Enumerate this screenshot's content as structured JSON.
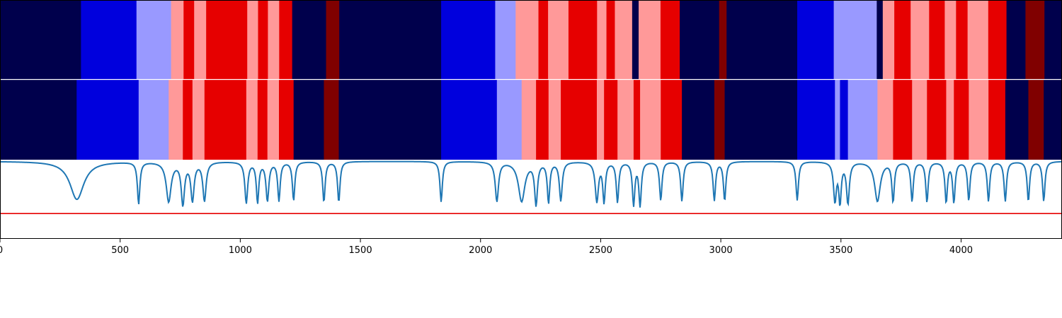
{
  "chart_data": {
    "type": "heatmap",
    "title": "",
    "xlabel": "",
    "ylabel": "",
    "xlim": [
      0,
      4420
    ],
    "x_ticks": [
      {
        "value": 0,
        "label": "0"
      },
      {
        "value": 500,
        "label": "500"
      },
      {
        "value": 1000,
        "label": "1000"
      },
      {
        "value": 1500,
        "label": "1500"
      },
      {
        "value": 2000,
        "label": "2000"
      },
      {
        "value": 2500,
        "label": "2500"
      },
      {
        "value": 3000,
        "label": "3000"
      },
      {
        "value": 3500,
        "label": "3500"
      },
      {
        "value": 4000,
        "label": "4000"
      }
    ],
    "colors": {
      "0": "#00004c",
      "1": "#0000dd",
      "2": "#9999ff",
      "3": "#ff9999",
      "4": "#e60000",
      "5": "#800000",
      "line": "#1f77b4",
      "threshold": "#e60000"
    },
    "rows": [
      {
        "segments": [
          [
            0,
            337,
            0
          ],
          [
            337,
            568,
            1
          ],
          [
            568,
            712,
            2
          ],
          [
            712,
            764,
            3
          ],
          [
            764,
            808,
            4
          ],
          [
            808,
            858,
            3
          ],
          [
            858,
            1029,
            4
          ],
          [
            1029,
            1074,
            3
          ],
          [
            1074,
            1115,
            4
          ],
          [
            1115,
            1162,
            3
          ],
          [
            1162,
            1216,
            4
          ],
          [
            1216,
            1357,
            0
          ],
          [
            1357,
            1412,
            5
          ],
          [
            1412,
            1836,
            0
          ],
          [
            1836,
            2061,
            1
          ],
          [
            2061,
            2146,
            2
          ],
          [
            2146,
            2241,
            3
          ],
          [
            2241,
            2281,
            4
          ],
          [
            2281,
            2366,
            3
          ],
          [
            2366,
            2485,
            4
          ],
          [
            2485,
            2524,
            3
          ],
          [
            2524,
            2559,
            4
          ],
          [
            2559,
            2631,
            3
          ],
          [
            2631,
            2658,
            0
          ],
          [
            2658,
            2749,
            3
          ],
          [
            2749,
            2829,
            4
          ],
          [
            2829,
            2993,
            0
          ],
          [
            2993,
            3024,
            5
          ],
          [
            3024,
            3318,
            0
          ],
          [
            3318,
            3470,
            1
          ],
          [
            3470,
            3649,
            2
          ],
          [
            3649,
            3674,
            0
          ],
          [
            3674,
            3722,
            3
          ],
          [
            3722,
            3790,
            4
          ],
          [
            3790,
            3867,
            3
          ],
          [
            3867,
            3932,
            4
          ],
          [
            3932,
            3979,
            3
          ],
          [
            3979,
            4027,
            4
          ],
          [
            4027,
            4113,
            3
          ],
          [
            4113,
            4189,
            4
          ],
          [
            4189,
            4268,
            0
          ],
          [
            4268,
            4347,
            5
          ],
          [
            4347,
            4420,
            0
          ]
        ]
      },
      {
        "segments": [
          [
            0,
            319,
            0
          ],
          [
            319,
            577,
            1
          ],
          [
            577,
            702,
            2
          ],
          [
            702,
            761,
            3
          ],
          [
            761,
            801,
            4
          ],
          [
            801,
            851,
            3
          ],
          [
            851,
            1025,
            4
          ],
          [
            1025,
            1072,
            3
          ],
          [
            1072,
            1113,
            4
          ],
          [
            1113,
            1161,
            3
          ],
          [
            1161,
            1222,
            4
          ],
          [
            1222,
            1348,
            0
          ],
          [
            1348,
            1410,
            5
          ],
          [
            1410,
            1836,
            0
          ],
          [
            1836,
            2068,
            1
          ],
          [
            2068,
            2171,
            2
          ],
          [
            2171,
            2231,
            3
          ],
          [
            2231,
            2283,
            4
          ],
          [
            2283,
            2334,
            3
          ],
          [
            2334,
            2484,
            4
          ],
          [
            2484,
            2514,
            3
          ],
          [
            2514,
            2570,
            4
          ],
          [
            2570,
            2637,
            3
          ],
          [
            2637,
            2664,
            4
          ],
          [
            2664,
            2750,
            3
          ],
          [
            2750,
            2838,
            4
          ],
          [
            2838,
            2973,
            0
          ],
          [
            2973,
            3016,
            5
          ],
          [
            3016,
            3318,
            0
          ],
          [
            3318,
            3475,
            1
          ],
          [
            3475,
            3496,
            2
          ],
          [
            3496,
            3529,
            1
          ],
          [
            3529,
            3652,
            2
          ],
          [
            3652,
            3717,
            3
          ],
          [
            3717,
            3796,
            4
          ],
          [
            3796,
            3858,
            3
          ],
          [
            3858,
            3938,
            4
          ],
          [
            3938,
            3970,
            3
          ],
          [
            3970,
            4032,
            4
          ],
          [
            4032,
            4114,
            3
          ],
          [
            4114,
            4184,
            4
          ],
          [
            4184,
            4280,
            0
          ],
          [
            4280,
            4344,
            5
          ],
          [
            4344,
            4420,
            0
          ]
        ]
      }
    ],
    "line_series": {
      "ylim": [
        0,
        1
      ],
      "baseline": 0.98,
      "dips": [
        [
          320,
          0.5,
          35
        ],
        [
          577,
          0.45,
          6
        ],
        [
          702,
          0.48,
          12
        ],
        [
          761,
          0.45,
          8
        ],
        [
          801,
          0.5,
          8
        ],
        [
          851,
          0.49,
          8
        ],
        [
          1025,
          0.46,
          7
        ],
        [
          1072,
          0.47,
          6
        ],
        [
          1113,
          0.49,
          7
        ],
        [
          1161,
          0.49,
          6
        ],
        [
          1222,
          0.49,
          6
        ],
        [
          1348,
          0.47,
          6
        ],
        [
          1410,
          0.47,
          6
        ],
        [
          1836,
          0.47,
          6
        ],
        [
          2068,
          0.48,
          8
        ],
        [
          2171,
          0.48,
          16
        ],
        [
          2231,
          0.45,
          7
        ],
        [
          2283,
          0.47,
          6
        ],
        [
          2334,
          0.49,
          7
        ],
        [
          2484,
          0.48,
          8
        ],
        [
          2514,
          0.48,
          6
        ],
        [
          2570,
          0.47,
          6
        ],
        [
          2637,
          0.44,
          6
        ],
        [
          2664,
          0.43,
          6
        ],
        [
          2750,
          0.49,
          6
        ],
        [
          2838,
          0.48,
          6
        ],
        [
          2973,
          0.49,
          6
        ],
        [
          3016,
          0.49,
          6
        ],
        [
          3318,
          0.49,
          6
        ],
        [
          3475,
          0.49,
          7
        ],
        [
          3496,
          0.48,
          6
        ],
        [
          3529,
          0.46,
          7
        ],
        [
          3652,
          0.48,
          14
        ],
        [
          3717,
          0.48,
          6
        ],
        [
          3796,
          0.48,
          6
        ],
        [
          3858,
          0.47,
          6
        ],
        [
          3938,
          0.47,
          6
        ],
        [
          3970,
          0.47,
          6
        ],
        [
          4032,
          0.49,
          6
        ],
        [
          4114,
          0.48,
          6
        ],
        [
          4184,
          0.48,
          6
        ],
        [
          4280,
          0.48,
          6
        ],
        [
          4344,
          0.48,
          6
        ]
      ],
      "threshold": 0.32
    }
  }
}
